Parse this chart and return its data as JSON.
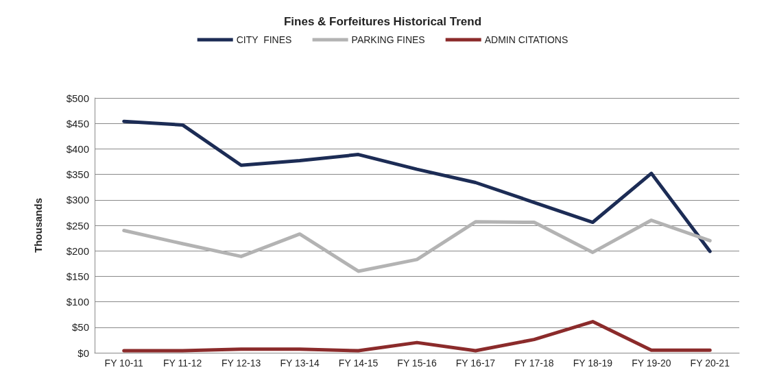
{
  "chart_data": {
    "type": "line",
    "title": "Fines & Forfeitures Historical Trend",
    "ylabel": "Thousands",
    "categories": [
      "FY 10-11",
      "FY 11-12",
      "FY 12-13",
      "FY 13-14",
      "FY 14-15",
      "FY 15-16",
      "FY 16-17",
      "FY 17-18",
      "FY 18-19",
      "FY 19-20",
      "FY 20-21"
    ],
    "series": [
      {
        "name": "CITY  FINES",
        "color": "#1c2c55",
        "values": [
          454,
          447,
          368,
          377,
          389,
          360,
          334,
          295,
          256,
          352,
          199
        ]
      },
      {
        "name": "PARKING FINES",
        "color": "#b3b3b3",
        "values": [
          240,
          214,
          189,
          233,
          160,
          183,
          257,
          256,
          197,
          260,
          220
        ]
      },
      {
        "name": "ADMIN CITATIONS",
        "color": "#8b2b2b",
        "values": [
          4,
          4,
          7,
          7,
          4,
          20,
          4,
          26,
          61,
          5,
          5
        ]
      }
    ],
    "ylim": [
      0,
      500
    ],
    "yticks": [
      {
        "value": 0,
        "label": "$0"
      },
      {
        "value": 50,
        "label": "$50"
      },
      {
        "value": 100,
        "label": "$100"
      },
      {
        "value": 150,
        "label": "$150"
      },
      {
        "value": 200,
        "label": "$200"
      },
      {
        "value": 250,
        "label": "$250"
      },
      {
        "value": 300,
        "label": "$300"
      },
      {
        "value": 350,
        "label": "$350"
      },
      {
        "value": 400,
        "label": "$400"
      },
      {
        "value": 450,
        "label": "$450"
      },
      {
        "value": 500,
        "label": "$500"
      }
    ],
    "grid": "y",
    "legend": "top",
    "marker": "none",
    "line_style": "solid"
  }
}
